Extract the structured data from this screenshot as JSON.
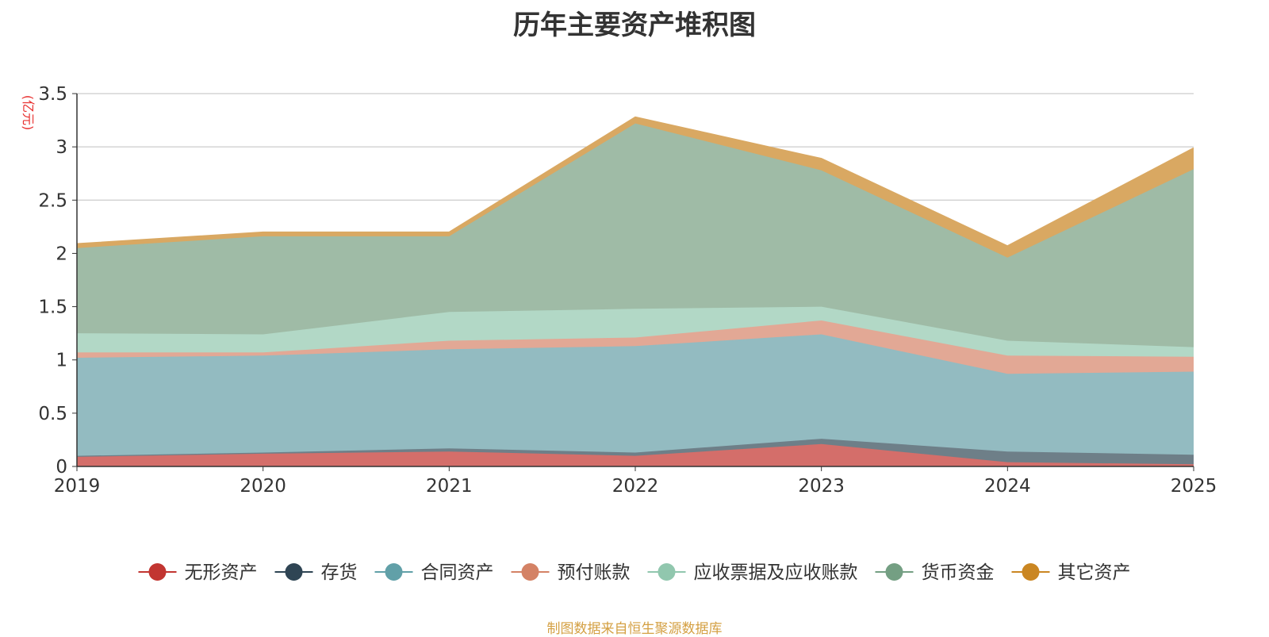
{
  "chart_data": {
    "type": "area",
    "stacked": true,
    "title": "历年主要资产堆积图",
    "unit_label": "(亿元)",
    "x": [
      "2019",
      "2020",
      "2021",
      "2022",
      "2023",
      "2024",
      "2025"
    ],
    "ylim": [
      0,
      3.5
    ],
    "yticks": [
      "0",
      "0.5",
      "1",
      "1.5",
      "2",
      "2.5",
      "3",
      "3.5"
    ],
    "grid": true,
    "legend_position": "bottom",
    "series": [
      {
        "name": "无形资产",
        "color": "#c23531",
        "area_color": "#d46e6a",
        "values": [
          0.09,
          0.12,
          0.14,
          0.1,
          0.21,
          0.04,
          0.02
        ]
      },
      {
        "name": "存货",
        "color": "#2f4554",
        "area_color": "#6e7f88",
        "values": [
          0.01,
          0.01,
          0.03,
          0.03,
          0.05,
          0.1,
          0.09
        ]
      },
      {
        "name": "合同资产",
        "color": "#61a0a8",
        "area_color": "#93bbc1",
        "values": [
          0.92,
          0.91,
          0.93,
          1.0,
          0.98,
          0.73,
          0.78
        ]
      },
      {
        "name": "预付账款",
        "color": "#d48265",
        "area_color": "#e2a895",
        "values": [
          0.05,
          0.03,
          0.08,
          0.08,
          0.13,
          0.17,
          0.14
        ]
      },
      {
        "name": "应收票据及应收账款",
        "color": "#91c7ae",
        "area_color": "#b2d8c6",
        "values": [
          0.18,
          0.17,
          0.27,
          0.27,
          0.13,
          0.14,
          0.09
        ]
      },
      {
        "name": "货币资金",
        "color": "#749f83",
        "area_color": "#9fbba6",
        "values": [
          0.8,
          0.92,
          0.71,
          1.74,
          1.28,
          0.78,
          1.67
        ]
      },
      {
        "name": "其它资产",
        "color": "#ca8622",
        "area_color": "#d9a862",
        "values": [
          0.04,
          0.04,
          0.04,
          0.06,
          0.11,
          0.11,
          0.2
        ]
      }
    ]
  },
  "footer": {
    "source": "制图数据来自恒生聚源数据库"
  }
}
